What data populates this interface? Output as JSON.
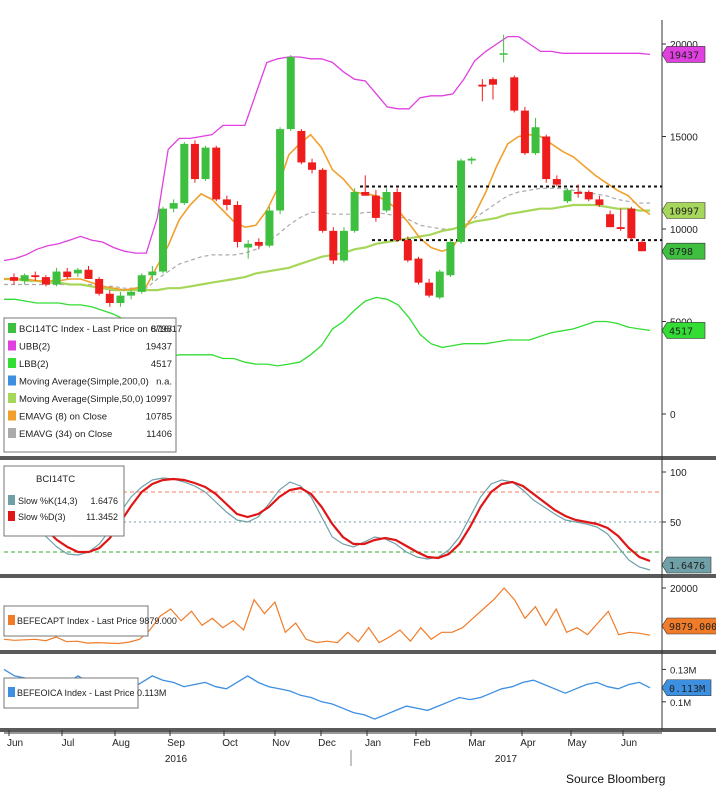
{
  "source": "Source Bloomberg",
  "colors": {
    "up": "#3fbf3f",
    "down": "#ee1c1c",
    "ubb": "#e040e0",
    "lbb": "#33dd33",
    "ma50": "#a6d65a",
    "ema8": "#f0a02c",
    "ema34": "#aaaaaa",
    "slowK": "#6fa0a8",
    "slowD": "#e01515",
    "capt": "#f07c2a",
    "oica": "#3d8fe0",
    "separator": "#5a5a5a",
    "axis": "#333333"
  },
  "x_axis": {
    "months": [
      "Jun",
      "Jul",
      "Aug",
      "Sep",
      "Oct",
      "Nov",
      "Dec",
      "Jan",
      "Feb",
      "Mar",
      "Apr",
      "May",
      "Jun"
    ],
    "years": [
      "2016",
      "2017"
    ]
  },
  "main_panel": {
    "y_ticks": [
      "20000",
      "15000",
      "10000",
      "5000",
      "0"
    ],
    "value_tags": [
      {
        "text": "19437",
        "color": "ubb"
      },
      {
        "text": "10997",
        "color": "ma50"
      },
      {
        "text": "8798",
        "color": "up"
      },
      {
        "text": "4517",
        "color": "lbb"
      }
    ],
    "legend": [
      {
        "label": "BCI14TC Index - Last Price on 6/16/17",
        "value": "8798",
        "color": "up"
      },
      {
        "label": "UBB(2)",
        "value": "19437",
        "color": "ubb"
      },
      {
        "label": "LBB(2)",
        "value": "4517",
        "color": "lbb"
      },
      {
        "label": "Moving Average(Simple,200,0)",
        "value": "n.a.",
        "color": "oica"
      },
      {
        "label": "Moving Average(Simple,50,0)",
        "value": "10997",
        "color": "ma50"
      },
      {
        "label": "EMAVG (8) on Close",
        "value": "10785",
        "color": "ema8"
      },
      {
        "label": "EMAVG (34) on Close",
        "value": "11406",
        "color": "ema34"
      }
    ]
  },
  "stoch_panel": {
    "title": "BCI14TC",
    "y_ticks": [
      "100",
      "50"
    ],
    "legend": [
      {
        "label": "Slow %K(14,3)",
        "value": "1.6476",
        "color": "slowK"
      },
      {
        "label": "Slow %D(3)",
        "value": "11.3452",
        "color": "slowD"
      }
    ],
    "value_tags": [
      {
        "text": "1.6476",
        "color": "slowK"
      }
    ]
  },
  "capt_panel": {
    "y_ticks": [
      "20000"
    ],
    "legend": [
      {
        "label": "BEFECAPT Index - Last Price",
        "value": "9879.000",
        "color": "capt"
      }
    ],
    "value_tags": [
      {
        "text": "9879.000",
        "color": "capt"
      }
    ]
  },
  "oica_panel": {
    "y_ticks": [
      "0.13M",
      "0.1M"
    ],
    "legend": [
      {
        "label": "BEFEOICA Index - Last Price",
        "value": "0.113M",
        "color": "oica"
      }
    ],
    "value_tags": [
      {
        "text": "0.113M",
        "color": "oica"
      }
    ]
  },
  "chart_data": {
    "type": "candlestick",
    "title": "",
    "ylim": [
      0,
      20500
    ],
    "candles_ohlc": [
      [
        7400,
        7600,
        7000,
        7200
      ],
      [
        7200,
        7600,
        7000,
        7500
      ],
      [
        7500,
        7700,
        7200,
        7400
      ],
      [
        7400,
        7500,
        6900,
        7000
      ],
      [
        7000,
        7900,
        6900,
        7700
      ],
      [
        7700,
        7900,
        7300,
        7400
      ],
      [
        7600,
        7900,
        7400,
        7800
      ],
      [
        7800,
        8000,
        7300,
        7300
      ],
      [
        7300,
        7400,
        6400,
        6500
      ],
      [
        6500,
        6700,
        5800,
        6000
      ],
      [
        6000,
        6600,
        5800,
        6400
      ],
      [
        6400,
        6700,
        6200,
        6600
      ],
      [
        6600,
        7600,
        6500,
        7500
      ],
      [
        7500,
        8000,
        7200,
        7700
      ],
      [
        7700,
        11200,
        7600,
        11100
      ],
      [
        11100,
        11600,
        10900,
        11400
      ],
      [
        11400,
        14700,
        11300,
        14600
      ],
      [
        14600,
        14800,
        12500,
        12700
      ],
      [
        12700,
        14500,
        12600,
        14400
      ],
      [
        14400,
        14500,
        11500,
        11600
      ],
      [
        11600,
        11800,
        11000,
        11300
      ],
      [
        11300,
        11500,
        9000,
        9300
      ],
      [
        9000,
        9400,
        8400,
        9200
      ],
      [
        9300,
        9500,
        8900,
        9100
      ],
      [
        9100,
        11200,
        9000,
        11000
      ],
      [
        11000,
        15500,
        10800,
        15400
      ],
      [
        15400,
        19400,
        15300,
        19300
      ],
      [
        15300,
        15400,
        13500,
        13600
      ],
      [
        13600,
        13800,
        13000,
        13200
      ],
      [
        13200,
        13300,
        9800,
        9900
      ],
      [
        9900,
        10100,
        8100,
        8300
      ],
      [
        8300,
        10100,
        8200,
        9900
      ],
      [
        9900,
        12200,
        9800,
        12000
      ],
      [
        12000,
        12900,
        11800,
        11800
      ],
      [
        11800,
        12100,
        10400,
        10600
      ],
      [
        11000,
        12200,
        10900,
        12000
      ],
      [
        12000,
        12200,
        9300,
        9400
      ],
      [
        9400,
        9600,
        8200,
        8300
      ],
      [
        8400,
        8500,
        7000,
        7100
      ],
      [
        7100,
        7300,
        6300,
        6400
      ],
      [
        6300,
        7800,
        6200,
        7700
      ],
      [
        7500,
        9500,
        7400,
        9300
      ],
      [
        9300,
        13800,
        9200,
        13700
      ],
      [
        13700,
        13900,
        13500,
        13800
      ],
      [
        17800,
        18100,
        16900,
        17700
      ],
      [
        18100,
        18200,
        17000,
        17800
      ],
      [
        19500,
        20500,
        19000,
        19500
      ],
      [
        18200,
        18300,
        16300,
        16400
      ],
      [
        16400,
        16600,
        14000,
        14100
      ],
      [
        14100,
        16000,
        14000,
        15500
      ],
      [
        15000,
        15100,
        12500,
        12700
      ],
      [
        12700,
        12900,
        12300,
        12400
      ],
      [
        11500,
        12200,
        11400,
        12100
      ],
      [
        12000,
        12400,
        11700,
        11900
      ],
      [
        12000,
        12100,
        11500,
        11600
      ],
      [
        11600,
        11800,
        11200,
        11300
      ],
      [
        10800,
        11000,
        10100,
        10100
      ],
      [
        10100,
        11100,
        9900,
        10000
      ],
      [
        11100,
        11200,
        9400,
        9500
      ],
      [
        9300,
        9400,
        8800,
        8800
      ]
    ],
    "series": [
      {
        "name": "UBB(2)",
        "values": [
          8300,
          8400,
          8600,
          8900,
          9100,
          9200,
          9400,
          9600,
          9400,
          9300,
          9000,
          8800,
          8700,
          8700,
          10600,
          14300,
          14900,
          14900,
          15000,
          15100,
          15600,
          15600,
          15600,
          17300,
          19000,
          19200,
          19300,
          19300,
          19200,
          19200,
          19000,
          18500,
          18100,
          18000,
          17300,
          16600,
          16500,
          16500,
          17100,
          17200,
          17200,
          17300,
          18100,
          19100,
          19600,
          20000,
          20400,
          20400,
          20000,
          19600,
          19600,
          19500,
          19500,
          19500,
          19500,
          19500,
          19500,
          19500,
          19500,
          19437
        ]
      },
      {
        "name": "LBB(2)",
        "values": [
          6200,
          6200,
          6100,
          6000,
          6000,
          6000,
          5900,
          5900,
          5800,
          5600,
          5400,
          5100,
          4700,
          4400,
          3300,
          3100,
          3200,
          3200,
          3200,
          3200,
          3000,
          3000,
          2800,
          2700,
          2700,
          2600,
          2700,
          2800,
          3200,
          3700,
          4600,
          5000,
          5600,
          6100,
          6300,
          6200,
          5900,
          5200,
          4300,
          3800,
          3600,
          3700,
          3800,
          3800,
          3800,
          3900,
          4000,
          4000,
          4000,
          4200,
          4400,
          4500,
          4600,
          4800,
          5000,
          5000,
          4900,
          4700,
          4600,
          4517
        ]
      },
      {
        "name": "Moving Average(Simple,50,0)",
        "values": [
          7300,
          7300,
          7200,
          7200,
          7100,
          7100,
          7000,
          7000,
          6900,
          6800,
          6700,
          6700,
          6700,
          6700,
          6700,
          6800,
          6800,
          6900,
          7000,
          7100,
          7200,
          7300,
          7400,
          7600,
          7700,
          7800,
          7900,
          8100,
          8300,
          8500,
          8600,
          8700,
          8900,
          9000,
          9200,
          9300,
          9400,
          9500,
          9600,
          9700,
          9900,
          10000,
          10200,
          10400,
          10500,
          10600,
          10800,
          10900,
          11000,
          11100,
          11100,
          11200,
          11300,
          11300,
          11300,
          11200,
          11100,
          11100,
          11000,
          10997
        ]
      },
      {
        "name": "EMAVG (8) on Close",
        "values": [
          7300,
          7300,
          7300,
          7200,
          7200,
          7200,
          7300,
          7300,
          7100,
          6900,
          6800,
          6700,
          6800,
          6900,
          8000,
          9100,
          10500,
          11300,
          11900,
          11600,
          11000,
          10400,
          10100,
          10200,
          11000,
          12200,
          14000,
          14600,
          15100,
          14400,
          13200,
          12700,
          12000,
          11900,
          11800,
          11500,
          11000,
          10300,
          9500,
          9000,
          8800,
          9000,
          10000,
          10800,
          12000,
          13400,
          14600,
          15000,
          15100,
          15000,
          14600,
          14200,
          13900,
          13400,
          12900,
          12500,
          12100,
          11800,
          11200,
          10785
        ]
      },
      {
        "name": "EMAVG (34) on Close",
        "values": [
          7000,
          7000,
          7000,
          7000,
          7000,
          7000,
          7000,
          7000,
          7000,
          6900,
          6900,
          6800,
          6800,
          6800,
          7300,
          7700,
          8100,
          8300,
          8500,
          8600,
          8600,
          8600,
          8700,
          8900,
          9300,
          9700,
          10200,
          10600,
          10900,
          10900,
          10800,
          10800,
          10800,
          10900,
          10900,
          10800,
          10700,
          10500,
          10200,
          10100,
          10000,
          10000,
          10300,
          10600,
          11000,
          11400,
          11800,
          12000,
          12100,
          12200,
          12200,
          12200,
          12100,
          12000,
          11900,
          11800,
          11600,
          11500,
          11400,
          11406
        ]
      },
      {
        "name": "Slow %K(14,3)",
        "values": [
          65,
          62,
          55,
          45,
          35,
          25,
          18,
          17,
          20,
          28,
          42,
          60,
          75,
          85,
          92,
          94,
          93,
          90,
          86,
          80,
          70,
          60,
          52,
          50,
          55,
          68,
          82,
          90,
          86,
          75,
          55,
          35,
          28,
          25,
          30,
          35,
          33,
          28,
          20,
          15,
          13,
          15,
          22,
          35,
          55,
          75,
          88,
          92,
          90,
          82,
          72,
          65,
          58,
          52,
          50,
          48,
          45,
          38,
          25,
          12,
          5,
          2
        ]
      },
      {
        "name": "Slow %D(3)",
        "values": [
          60,
          60,
          58,
          52,
          42,
          32,
          25,
          20,
          20,
          24,
          34,
          50,
          66,
          80,
          88,
          92,
          93,
          92,
          89,
          85,
          78,
          68,
          58,
          55,
          58,
          65,
          75,
          82,
          84,
          78,
          65,
          48,
          35,
          28,
          28,
          32,
          34,
          32,
          26,
          20,
          15,
          14,
          18,
          28,
          45,
          65,
          80,
          88,
          90,
          86,
          78,
          70,
          62,
          56,
          52,
          50,
          48,
          44,
          36,
          24,
          15,
          11
        ]
      },
      {
        "name": "BEFECAPT Index",
        "values": [
          9000,
          8800,
          8900,
          9000,
          8700,
          9500,
          8500,
          8600,
          8200,
          8300,
          8200,
          8100,
          8400,
          9000,
          11000,
          14000,
          15500,
          13000,
          15000,
          12000,
          13500,
          11500,
          13000,
          11000,
          17500,
          14500,
          17000,
          10500,
          12500,
          9000,
          8300,
          8600,
          8300,
          10500,
          8500,
          11500,
          8300,
          9500,
          11000,
          8600,
          11500,
          9000,
          10500,
          10500,
          11500,
          13500,
          15500,
          17500,
          20000,
          17500,
          13500,
          16000,
          12000,
          15500,
          10500,
          11500,
          10000,
          12500,
          15000,
          10000,
          10500,
          10300,
          9879
        ]
      },
      {
        "name": "BEFEOICA Index",
        "values": [
          0.13,
          0.124,
          0.122,
          0.118,
          0.116,
          0.112,
          0.118,
          0.124,
          0.118,
          0.114,
          0.116,
          0.114,
          0.112,
          0.118,
          0.124,
          0.12,
          0.118,
          0.114,
          0.116,
          0.118,
          0.114,
          0.112,
          0.118,
          0.124,
          0.118,
          0.114,
          0.112,
          0.11,
          0.106,
          0.104,
          0.1,
          0.098,
          0.094,
          0.09,
          0.088,
          0.084,
          0.088,
          0.092,
          0.096,
          0.094,
          0.092,
          0.096,
          0.1,
          0.104,
          0.102,
          0.104,
          0.108,
          0.112,
          0.114,
          0.118,
          0.12,
          0.116,
          0.112,
          0.108,
          0.112,
          0.116,
          0.118,
          0.114,
          0.112,
          0.116,
          0.118,
          0.113
        ]
      }
    ],
    "annotations": {
      "upper_line": 12300,
      "lower_line": 9400
    }
  }
}
